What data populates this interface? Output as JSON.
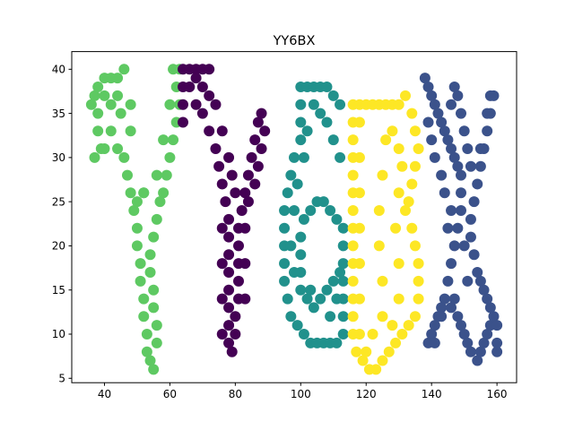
{
  "chart_data": {
    "type": "scatter",
    "title": "YY6BX",
    "xlabel": "",
    "ylabel": "",
    "xlim": [
      30,
      166
    ],
    "ylim": [
      4.5,
      42
    ],
    "xticks": [
      40,
      60,
      80,
      100,
      120,
      140,
      160
    ],
    "yticks": [
      5,
      10,
      15,
      20,
      25,
      30,
      35,
      40
    ],
    "grid": false,
    "legend": "none",
    "colors": [
      "#5ec962",
      "#440154",
      "#21918c",
      "#fde725",
      "#3b528b"
    ],
    "series": [
      {
        "letter": "Y",
        "color": "#5ec962",
        "points": [
          [
            36,
            36
          ],
          [
            37,
            37
          ],
          [
            38,
            38
          ],
          [
            40,
            39
          ],
          [
            42,
            39
          ],
          [
            44,
            39
          ],
          [
            46,
            40
          ],
          [
            38,
            35
          ],
          [
            38,
            33
          ],
          [
            39,
            31
          ],
          [
            37,
            30
          ],
          [
            40,
            31
          ],
          [
            42,
            33
          ],
          [
            44,
            31
          ],
          [
            46,
            30
          ],
          [
            47,
            28
          ],
          [
            48,
            26
          ],
          [
            49,
            24
          ],
          [
            50,
            22
          ],
          [
            50,
            20
          ],
          [
            51,
            18
          ],
          [
            51,
            16
          ],
          [
            52,
            14
          ],
          [
            52,
            12
          ],
          [
            53,
            10
          ],
          [
            53,
            8
          ],
          [
            54,
            7
          ],
          [
            55,
            6
          ],
          [
            56,
            9
          ],
          [
            56,
            11
          ],
          [
            55,
            13
          ],
          [
            55,
            15
          ],
          [
            54,
            17
          ],
          [
            54,
            19
          ],
          [
            55,
            21
          ],
          [
            56,
            23
          ],
          [
            57,
            25
          ],
          [
            58,
            26
          ],
          [
            59,
            28
          ],
          [
            60,
            30
          ],
          [
            61,
            32
          ],
          [
            62,
            34
          ],
          [
            63,
            36
          ],
          [
            62,
            38
          ],
          [
            61,
            40
          ],
          [
            63,
            40
          ],
          [
            60,
            36
          ],
          [
            58,
            32
          ],
          [
            56,
            28
          ],
          [
            52,
            26
          ],
          [
            50,
            25
          ],
          [
            48,
            33
          ],
          [
            45,
            35
          ],
          [
            42,
            36
          ],
          [
            40,
            37
          ],
          [
            44,
            37
          ],
          [
            48,
            36
          ],
          [
            52,
            26
          ]
        ]
      },
      {
        "letter": "Y",
        "color": "#440154",
        "points": [
          [
            64,
            40
          ],
          [
            66,
            40
          ],
          [
            68,
            40
          ],
          [
            70,
            40
          ],
          [
            72,
            40
          ],
          [
            64,
            38
          ],
          [
            64,
            36
          ],
          [
            64,
            34
          ],
          [
            66,
            38
          ],
          [
            68,
            36
          ],
          [
            70,
            35
          ],
          [
            72,
            33
          ],
          [
            74,
            31
          ],
          [
            75,
            29
          ],
          [
            76,
            27
          ],
          [
            77,
            25
          ],
          [
            78,
            23
          ],
          [
            78,
            21
          ],
          [
            78,
            19
          ],
          [
            78,
            17
          ],
          [
            78,
            15
          ],
          [
            78,
            13
          ],
          [
            78,
            11
          ],
          [
            78,
            9
          ],
          [
            79,
            8
          ],
          [
            80,
            10
          ],
          [
            80,
            12
          ],
          [
            81,
            14
          ],
          [
            81,
            16
          ],
          [
            81,
            18
          ],
          [
            81,
            20
          ],
          [
            81,
            22
          ],
          [
            82,
            24
          ],
          [
            83,
            26
          ],
          [
            84,
            28
          ],
          [
            85,
            30
          ],
          [
            86,
            32
          ],
          [
            87,
            34
          ],
          [
            88,
            35
          ],
          [
            89,
            33
          ],
          [
            88,
            31
          ],
          [
            87,
            29
          ],
          [
            86,
            27
          ],
          [
            84,
            25
          ],
          [
            80,
            26
          ],
          [
            79,
            28
          ],
          [
            78,
            30
          ],
          [
            76,
            33
          ],
          [
            74,
            36
          ],
          [
            72,
            37
          ],
          [
            70,
            38
          ],
          [
            68,
            39
          ],
          [
            76,
            22
          ],
          [
            76,
            18
          ],
          [
            76,
            14
          ],
          [
            76,
            10
          ],
          [
            83,
            22
          ],
          [
            83,
            18
          ],
          [
            83,
            14
          ]
        ]
      },
      {
        "letter": "6",
        "color": "#21918c",
        "points": [
          [
            100,
            38
          ],
          [
            102,
            38
          ],
          [
            104,
            38
          ],
          [
            106,
            38
          ],
          [
            108,
            38
          ],
          [
            110,
            37
          ],
          [
            112,
            36
          ],
          [
            100,
            36
          ],
          [
            100,
            34
          ],
          [
            100,
            32
          ],
          [
            98,
            30
          ],
          [
            97,
            28
          ],
          [
            96,
            26
          ],
          [
            95,
            24
          ],
          [
            95,
            22
          ],
          [
            95,
            20
          ],
          [
            95,
            18
          ],
          [
            95,
            16
          ],
          [
            96,
            14
          ],
          [
            97,
            12
          ],
          [
            99,
            11
          ],
          [
            101,
            10
          ],
          [
            103,
            9
          ],
          [
            105,
            9
          ],
          [
            107,
            9
          ],
          [
            109,
            9
          ],
          [
            111,
            9
          ],
          [
            113,
            10
          ],
          [
            113,
            12
          ],
          [
            113,
            14
          ],
          [
            113,
            16
          ],
          [
            112,
            17
          ],
          [
            110,
            16
          ],
          [
            108,
            15
          ],
          [
            106,
            14
          ],
          [
            104,
            13
          ],
          [
            102,
            14
          ],
          [
            100,
            15
          ],
          [
            100,
            17
          ],
          [
            100,
            19
          ],
          [
            100,
            21
          ],
          [
            101,
            23
          ],
          [
            103,
            24
          ],
          [
            105,
            25
          ],
          [
            107,
            25
          ],
          [
            109,
            24
          ],
          [
            111,
            23
          ],
          [
            113,
            22
          ],
          [
            113,
            20
          ],
          [
            113,
            18
          ],
          [
            112,
            30
          ],
          [
            110,
            32
          ],
          [
            108,
            34
          ],
          [
            106,
            35
          ],
          [
            104,
            36
          ],
          [
            102,
            33
          ],
          [
            101,
            30
          ],
          [
            99,
            27
          ],
          [
            98,
            24
          ],
          [
            97,
            20
          ],
          [
            98,
            17
          ],
          [
            103,
            15
          ],
          [
            109,
            12
          ],
          [
            111,
            14
          ]
        ]
      },
      {
        "letter": "B",
        "color": "#fde725",
        "points": [
          [
            116,
            36
          ],
          [
            118,
            36
          ],
          [
            120,
            36
          ],
          [
            122,
            36
          ],
          [
            124,
            36
          ],
          [
            126,
            36
          ],
          [
            128,
            36
          ],
          [
            130,
            36
          ],
          [
            132,
            37
          ],
          [
            134,
            35
          ],
          [
            135,
            33
          ],
          [
            136,
            31
          ],
          [
            135,
            29
          ],
          [
            134,
            27
          ],
          [
            133,
            25
          ],
          [
            132,
            24
          ],
          [
            134,
            22
          ],
          [
            135,
            20
          ],
          [
            136,
            18
          ],
          [
            136,
            16
          ],
          [
            136,
            14
          ],
          [
            135,
            12
          ],
          [
            133,
            11
          ],
          [
            131,
            10
          ],
          [
            129,
            9
          ],
          [
            127,
            8
          ],
          [
            125,
            7
          ],
          [
            123,
            6
          ],
          [
            121,
            6
          ],
          [
            119,
            7
          ],
          [
            117,
            8
          ],
          [
            116,
            10
          ],
          [
            116,
            12
          ],
          [
            116,
            14
          ],
          [
            116,
            16
          ],
          [
            116,
            18
          ],
          [
            116,
            20
          ],
          [
            116,
            22
          ],
          [
            116,
            24
          ],
          [
            116,
            26
          ],
          [
            116,
            28
          ],
          [
            116,
            30
          ],
          [
            116,
            32
          ],
          [
            116,
            34
          ],
          [
            118,
            34
          ],
          [
            118,
            30
          ],
          [
            118,
            26
          ],
          [
            118,
            22
          ],
          [
            118,
            18
          ],
          [
            118,
            14
          ],
          [
            118,
            10
          ],
          [
            120,
            8
          ],
          [
            125,
            12
          ],
          [
            125,
            16
          ],
          [
            124,
            20
          ],
          [
            124,
            24
          ],
          [
            125,
            28
          ],
          [
            126,
            32
          ],
          [
            128,
            33
          ],
          [
            130,
            31
          ],
          [
            131,
            29
          ],
          [
            130,
            26
          ],
          [
            129,
            22
          ],
          [
            130,
            18
          ],
          [
            130,
            14
          ],
          [
            128,
            11
          ],
          [
            122,
            10
          ]
        ]
      },
      {
        "letter": "X",
        "color": "#3b528b",
        "points": [
          [
            138,
            39
          ],
          [
            139,
            38
          ],
          [
            140,
            37
          ],
          [
            141,
            36
          ],
          [
            142,
            35
          ],
          [
            143,
            34
          ],
          [
            144,
            33
          ],
          [
            145,
            32
          ],
          [
            146,
            31
          ],
          [
            147,
            30
          ],
          [
            148,
            29
          ],
          [
            149,
            28
          ],
          [
            149,
            26
          ],
          [
            149,
            24
          ],
          [
            148,
            22
          ],
          [
            147,
            20
          ],
          [
            146,
            18
          ],
          [
            145,
            16
          ],
          [
            144,
            14
          ],
          [
            143,
            13
          ],
          [
            142,
            12
          ],
          [
            141,
            11
          ],
          [
            140,
            10
          ],
          [
            139,
            9
          ],
          [
            141,
            9
          ],
          [
            143,
            12
          ],
          [
            146,
            13
          ],
          [
            147,
            14
          ],
          [
            148,
            12
          ],
          [
            149,
            11
          ],
          [
            150,
            10
          ],
          [
            151,
            9
          ],
          [
            152,
            8
          ],
          [
            154,
            7
          ],
          [
            155,
            8
          ],
          [
            156,
            9
          ],
          [
            157,
            10
          ],
          [
            158,
            11
          ],
          [
            159,
            12
          ],
          [
            160,
            11
          ],
          [
            160,
            9
          ],
          [
            160,
            8
          ],
          [
            158,
            13
          ],
          [
            157,
            14
          ],
          [
            156,
            15
          ],
          [
            155,
            16
          ],
          [
            154,
            17
          ],
          [
            153,
            19
          ],
          [
            152,
            21
          ],
          [
            152,
            23
          ],
          [
            153,
            25
          ],
          [
            154,
            27
          ],
          [
            155,
            29
          ],
          [
            156,
            31
          ],
          [
            157,
            33
          ],
          [
            158,
            35
          ],
          [
            159,
            37
          ],
          [
            158,
            37
          ],
          [
            157,
            35
          ],
          [
            155,
            31
          ],
          [
            152,
            29
          ],
          [
            151,
            31
          ],
          [
            150,
            33
          ],
          [
            149,
            35
          ],
          [
            148,
            37
          ],
          [
            147,
            38
          ],
          [
            146,
            36
          ],
          [
            150,
            20
          ],
          [
            151,
            16
          ],
          [
            145,
            22
          ],
          [
            146,
            24
          ],
          [
            144,
            26
          ],
          [
            143,
            28
          ],
          [
            141,
            30
          ],
          [
            140,
            32
          ],
          [
            139,
            34
          ]
        ]
      }
    ]
  }
}
